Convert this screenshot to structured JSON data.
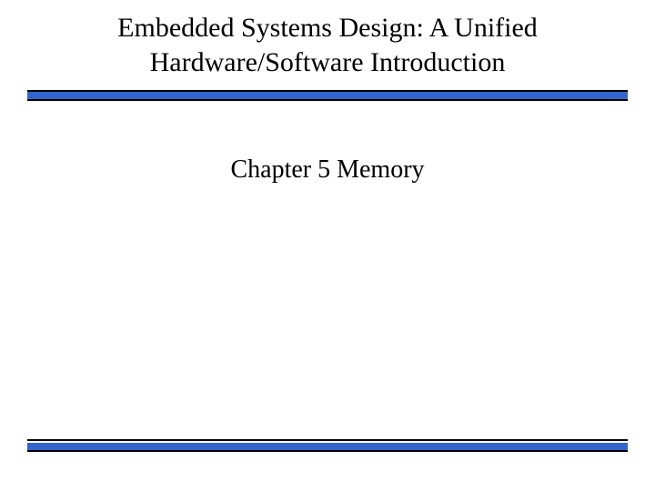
{
  "slide": {
    "title_line1": "Embedded Systems Design: A Unified",
    "title_line2": "Hardware/Software Introduction",
    "subtitle": "Chapter 5 Memory",
    "title_font_size": 30,
    "subtitle_font_size": 28,
    "font_family": "Times New Roman",
    "text_color": "#000000",
    "background_color": "#ffffff",
    "divider_bar_color": "#3366cc",
    "divider_border_color": "#000000",
    "divider_bar_height": 10,
    "divider_border_width": 2
  }
}
